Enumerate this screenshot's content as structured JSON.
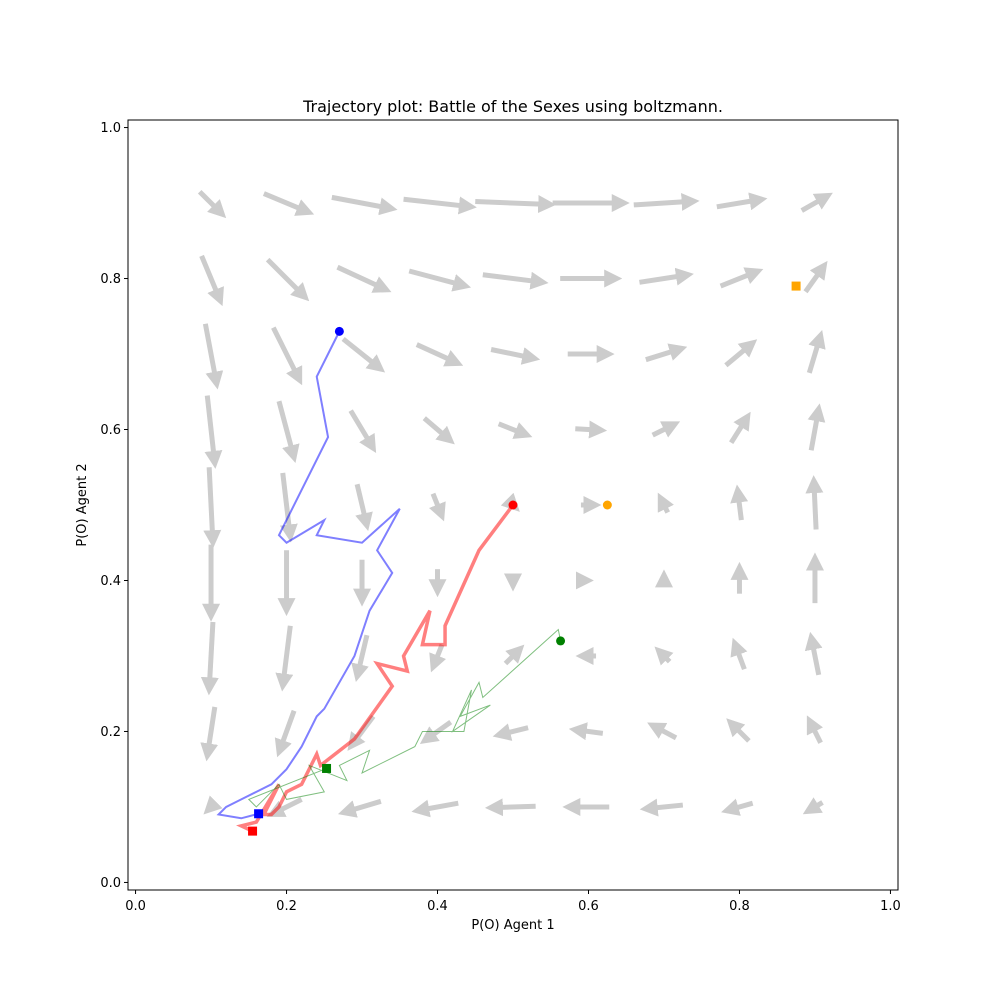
{
  "chart_data": {
    "type": "scatter",
    "title": "Trajectory plot: Battle of the Sexes using boltzmann.",
    "xlabel": "P(O) Agent 1",
    "ylabel": "P(O) Agent 2",
    "xlim": [
      -0.01,
      1.01
    ],
    "ylim": [
      -0.01,
      1.01
    ],
    "xticks": [
      "0.0",
      "0.2",
      "0.4",
      "0.6",
      "0.8",
      "1.0"
    ],
    "yticks": [
      "0.0",
      "0.2",
      "0.4",
      "0.6",
      "0.8",
      "1.0"
    ],
    "xtick_values": [
      0,
      0.2,
      0.4,
      0.6,
      0.8,
      1.0
    ],
    "ytick_values": [
      0,
      0.2,
      0.4,
      0.6,
      0.8,
      1.0
    ],
    "grid": false,
    "vector_field": {
      "color": "#cccccc",
      "grid_values": [
        0.1,
        0.2,
        0.3,
        0.4,
        0.5,
        0.6,
        0.7,
        0.8,
        0.9
      ],
      "vectors": [
        {
          "x": 0.1,
          "y": 0.9,
          "dx": 0.03,
          "dy": -0.03
        },
        {
          "x": 0.2,
          "y": 0.9,
          "dx": 0.06,
          "dy": -0.025
        },
        {
          "x": 0.3,
          "y": 0.9,
          "dx": 0.08,
          "dy": -0.015
        },
        {
          "x": 0.4,
          "y": 0.9,
          "dx": 0.09,
          "dy": -0.01
        },
        {
          "x": 0.5,
          "y": 0.9,
          "dx": 0.1,
          "dy": -0.004
        },
        {
          "x": 0.6,
          "y": 0.9,
          "dx": 0.095,
          "dy": 0
        },
        {
          "x": 0.7,
          "y": 0.9,
          "dx": 0.08,
          "dy": 0.005
        },
        {
          "x": 0.8,
          "y": 0.9,
          "dx": 0.06,
          "dy": 0.01
        },
        {
          "x": 0.9,
          "y": 0.9,
          "dx": 0.035,
          "dy": 0.02
        },
        {
          "x": 0.1,
          "y": 0.8,
          "dx": 0.025,
          "dy": -0.06
        },
        {
          "x": 0.2,
          "y": 0.8,
          "dx": 0.05,
          "dy": -0.05
        },
        {
          "x": 0.3,
          "y": 0.8,
          "dx": 0.065,
          "dy": -0.03
        },
        {
          "x": 0.4,
          "y": 0.8,
          "dx": 0.075,
          "dy": -0.02
        },
        {
          "x": 0.5,
          "y": 0.8,
          "dx": 0.08,
          "dy": -0.01
        },
        {
          "x": 0.6,
          "y": 0.8,
          "dx": 0.075,
          "dy": 0
        },
        {
          "x": 0.7,
          "y": 0.8,
          "dx": 0.065,
          "dy": 0.01
        },
        {
          "x": 0.8,
          "y": 0.8,
          "dx": 0.05,
          "dy": 0.02
        },
        {
          "x": 0.9,
          "y": 0.8,
          "dx": 0.025,
          "dy": 0.035
        },
        {
          "x": 0.1,
          "y": 0.7,
          "dx": 0.015,
          "dy": -0.08
        },
        {
          "x": 0.2,
          "y": 0.7,
          "dx": 0.035,
          "dy": -0.07
        },
        {
          "x": 0.3,
          "y": 0.7,
          "dx": 0.05,
          "dy": -0.04
        },
        {
          "x": 0.4,
          "y": 0.7,
          "dx": 0.055,
          "dy": -0.025
        },
        {
          "x": 0.5,
          "y": 0.7,
          "dx": 0.058,
          "dy": -0.012
        },
        {
          "x": 0.6,
          "y": 0.7,
          "dx": 0.055,
          "dy": 0
        },
        {
          "x": 0.7,
          "y": 0.7,
          "dx": 0.048,
          "dy": 0.015
        },
        {
          "x": 0.8,
          "y": 0.7,
          "dx": 0.036,
          "dy": 0.03
        },
        {
          "x": 0.9,
          "y": 0.7,
          "dx": 0.015,
          "dy": 0.05
        },
        {
          "x": 0.1,
          "y": 0.6,
          "dx": 0.01,
          "dy": -0.09
        },
        {
          "x": 0.2,
          "y": 0.6,
          "dx": 0.02,
          "dy": -0.075
        },
        {
          "x": 0.3,
          "y": 0.6,
          "dx": 0.03,
          "dy": -0.05
        },
        {
          "x": 0.4,
          "y": 0.6,
          "dx": 0.035,
          "dy": -0.03
        },
        {
          "x": 0.5,
          "y": 0.6,
          "dx": 0.038,
          "dy": -0.015
        },
        {
          "x": 0.6,
          "y": 0.6,
          "dx": 0.035,
          "dy": -0.002
        },
        {
          "x": 0.7,
          "y": 0.6,
          "dx": 0.03,
          "dy": 0.015
        },
        {
          "x": 0.8,
          "y": 0.6,
          "dx": 0.022,
          "dy": 0.035
        },
        {
          "x": 0.9,
          "y": 0.6,
          "dx": 0.01,
          "dy": 0.055
        },
        {
          "x": 0.1,
          "y": 0.5,
          "dx": 0.005,
          "dy": -0.1
        },
        {
          "x": 0.2,
          "y": 0.5,
          "dx": 0.01,
          "dy": -0.085
        },
        {
          "x": 0.3,
          "y": 0.5,
          "dx": 0.013,
          "dy": -0.055
        },
        {
          "x": 0.4,
          "y": 0.5,
          "dx": 0.012,
          "dy": -0.03
        },
        {
          "x": 0.5,
          "y": 0.5,
          "dx": 0.008,
          "dy": -0.008
        },
        {
          "x": 0.6,
          "y": 0.5,
          "dx": 0.02,
          "dy": 0
        },
        {
          "x": 0.7,
          "y": 0.5,
          "dx": -0.01,
          "dy": 0.02
        },
        {
          "x": 0.8,
          "y": 0.5,
          "dx": -0.005,
          "dy": 0.04
        },
        {
          "x": 0.9,
          "y": 0.5,
          "dx": -0.003,
          "dy": 0.065
        },
        {
          "x": 0.1,
          "y": 0.4,
          "dx": 0,
          "dy": -0.095
        },
        {
          "x": 0.2,
          "y": 0.4,
          "dx": 0,
          "dy": -0.08
        },
        {
          "x": 0.3,
          "y": 0.4,
          "dx": 0,
          "dy": -0.055
        },
        {
          "x": 0.4,
          "y": 0.4,
          "dx": 0,
          "dy": -0.03
        },
        {
          "x": 0.5,
          "y": 0.4,
          "dx": 0,
          "dy": -0.015
        },
        {
          "x": 0.6,
          "y": 0.4,
          "dx": 0,
          "dy": 0
        },
        {
          "x": 0.7,
          "y": 0.4,
          "dx": 0,
          "dy": 0.015
        },
        {
          "x": 0.8,
          "y": 0.4,
          "dx": 0,
          "dy": 0.035
        },
        {
          "x": 0.9,
          "y": 0.4,
          "dx": 0,
          "dy": 0.06
        },
        {
          "x": 0.1,
          "y": 0.3,
          "dx": -0.005,
          "dy": -0.09
        },
        {
          "x": 0.2,
          "y": 0.3,
          "dx": -0.01,
          "dy": -0.08
        },
        {
          "x": 0.3,
          "y": 0.3,
          "dx": -0.013,
          "dy": -0.055
        },
        {
          "x": 0.4,
          "y": 0.3,
          "dx": -0.012,
          "dy": -0.03
        },
        {
          "x": 0.5,
          "y": 0.3,
          "dx": 0.02,
          "dy": 0.02
        },
        {
          "x": 0.6,
          "y": 0.3,
          "dx": -0.02,
          "dy": 0
        },
        {
          "x": 0.7,
          "y": 0.3,
          "dx": -0.015,
          "dy": 0.015
        },
        {
          "x": 0.8,
          "y": 0.3,
          "dx": -0.013,
          "dy": 0.035
        },
        {
          "x": 0.9,
          "y": 0.3,
          "dx": -0.01,
          "dy": 0.05
        },
        {
          "x": 0.1,
          "y": 0.2,
          "dx": -0.01,
          "dy": -0.065
        },
        {
          "x": 0.2,
          "y": 0.2,
          "dx": -0.02,
          "dy": -0.055
        },
        {
          "x": 0.3,
          "y": 0.2,
          "dx": -0.03,
          "dy": -0.04
        },
        {
          "x": 0.4,
          "y": 0.2,
          "dx": -0.035,
          "dy": -0.025
        },
        {
          "x": 0.5,
          "y": 0.2,
          "dx": -0.04,
          "dy": -0.01
        },
        {
          "x": 0.6,
          "y": 0.2,
          "dx": -0.038,
          "dy": 0.005
        },
        {
          "x": 0.7,
          "y": 0.2,
          "dx": -0.032,
          "dy": 0.017
        },
        {
          "x": 0.8,
          "y": 0.2,
          "dx": -0.025,
          "dy": 0.025
        },
        {
          "x": 0.9,
          "y": 0.2,
          "dx": -0.015,
          "dy": 0.03
        },
        {
          "x": 0.1,
          "y": 0.1,
          "dx": -0.01,
          "dy": -0.01
        },
        {
          "x": 0.2,
          "y": 0.1,
          "dx": -0.04,
          "dy": -0.02
        },
        {
          "x": 0.3,
          "y": 0.1,
          "dx": -0.05,
          "dy": -0.015
        },
        {
          "x": 0.4,
          "y": 0.1,
          "dx": -0.055,
          "dy": -0.01
        },
        {
          "x": 0.5,
          "y": 0.1,
          "dx": -0.06,
          "dy": -0.002
        },
        {
          "x": 0.6,
          "y": 0.1,
          "dx": -0.055,
          "dy": 0
        },
        {
          "x": 0.7,
          "y": 0.1,
          "dx": -0.05,
          "dy": -0.005
        },
        {
          "x": 0.8,
          "y": 0.1,
          "dx": -0.035,
          "dy": -0.01
        },
        {
          "x": 0.9,
          "y": 0.1,
          "dx": -0.02,
          "dy": -0.012
        }
      ]
    },
    "series": [
      {
        "color": "#ff0000",
        "line_width": 3.5,
        "start": [
          0.5,
          0.5
        ],
        "end": [
          0.155,
          0.068
        ],
        "points": [
          [
            0.5,
            0.5
          ],
          [
            0.455,
            0.44
          ],
          [
            0.41,
            0.34
          ],
          [
            0.41,
            0.315
          ],
          [
            0.38,
            0.315
          ],
          [
            0.39,
            0.36
          ],
          [
            0.355,
            0.3
          ],
          [
            0.36,
            0.28
          ],
          [
            0.32,
            0.29
          ],
          [
            0.34,
            0.26
          ],
          [
            0.29,
            0.19
          ],
          [
            0.245,
            0.155
          ],
          [
            0.24,
            0.17
          ],
          [
            0.22,
            0.13
          ],
          [
            0.2,
            0.12
          ],
          [
            0.19,
            0.1
          ],
          [
            0.18,
            0.09
          ],
          [
            0.17,
            0.09
          ],
          [
            0.19,
            0.13
          ],
          [
            0.16,
            0.08
          ],
          [
            0.14,
            0.075
          ],
          [
            0.155,
            0.068
          ]
        ]
      },
      {
        "color": "#008000",
        "line_width": 1,
        "start": [
          0.563,
          0.32
        ],
        "end": [
          0.253,
          0.151
        ],
        "points": [
          [
            0.563,
            0.32
          ],
          [
            0.56,
            0.335
          ],
          [
            0.46,
            0.245
          ],
          [
            0.455,
            0.265
          ],
          [
            0.43,
            0.22
          ],
          [
            0.47,
            0.235
          ],
          [
            0.42,
            0.2
          ],
          [
            0.445,
            0.255
          ],
          [
            0.435,
            0.2
          ],
          [
            0.38,
            0.2
          ],
          [
            0.37,
            0.18
          ],
          [
            0.3,
            0.145
          ],
          [
            0.31,
            0.175
          ],
          [
            0.27,
            0.155
          ],
          [
            0.28,
            0.135
          ],
          [
            0.23,
            0.155
          ],
          [
            0.25,
            0.12
          ],
          [
            0.2,
            0.11
          ],
          [
            0.19,
            0.13
          ],
          [
            0.16,
            0.1
          ],
          [
            0.15,
            0.11
          ],
          [
            0.253,
            0.151
          ]
        ]
      },
      {
        "color": "#0000ff",
        "line_width": 2,
        "start": [
          0.27,
          0.73
        ],
        "end": [
          0.163,
          0.091
        ],
        "points": [
          [
            0.27,
            0.73
          ],
          [
            0.24,
            0.67
          ],
          [
            0.255,
            0.59
          ],
          [
            0.19,
            0.46
          ],
          [
            0.2,
            0.45
          ],
          [
            0.25,
            0.48
          ],
          [
            0.24,
            0.46
          ],
          [
            0.3,
            0.45
          ],
          [
            0.35,
            0.495
          ],
          [
            0.32,
            0.44
          ],
          [
            0.34,
            0.41
          ],
          [
            0.31,
            0.36
          ],
          [
            0.3,
            0.33
          ],
          [
            0.29,
            0.3
          ],
          [
            0.25,
            0.23
          ],
          [
            0.24,
            0.22
          ],
          [
            0.22,
            0.18
          ],
          [
            0.2,
            0.15
          ],
          [
            0.18,
            0.13
          ],
          [
            0.16,
            0.12
          ],
          [
            0.14,
            0.11
          ],
          [
            0.12,
            0.1
          ],
          [
            0.11,
            0.09
          ],
          [
            0.14,
            0.085
          ],
          [
            0.163,
            0.091
          ]
        ]
      }
    ],
    "extra_markers": [
      {
        "shape": "circle",
        "color": "#ffa500",
        "x": 0.625,
        "y": 0.5
      },
      {
        "shape": "square",
        "color": "#ffa500",
        "x": 0.875,
        "y": 0.79
      }
    ]
  }
}
